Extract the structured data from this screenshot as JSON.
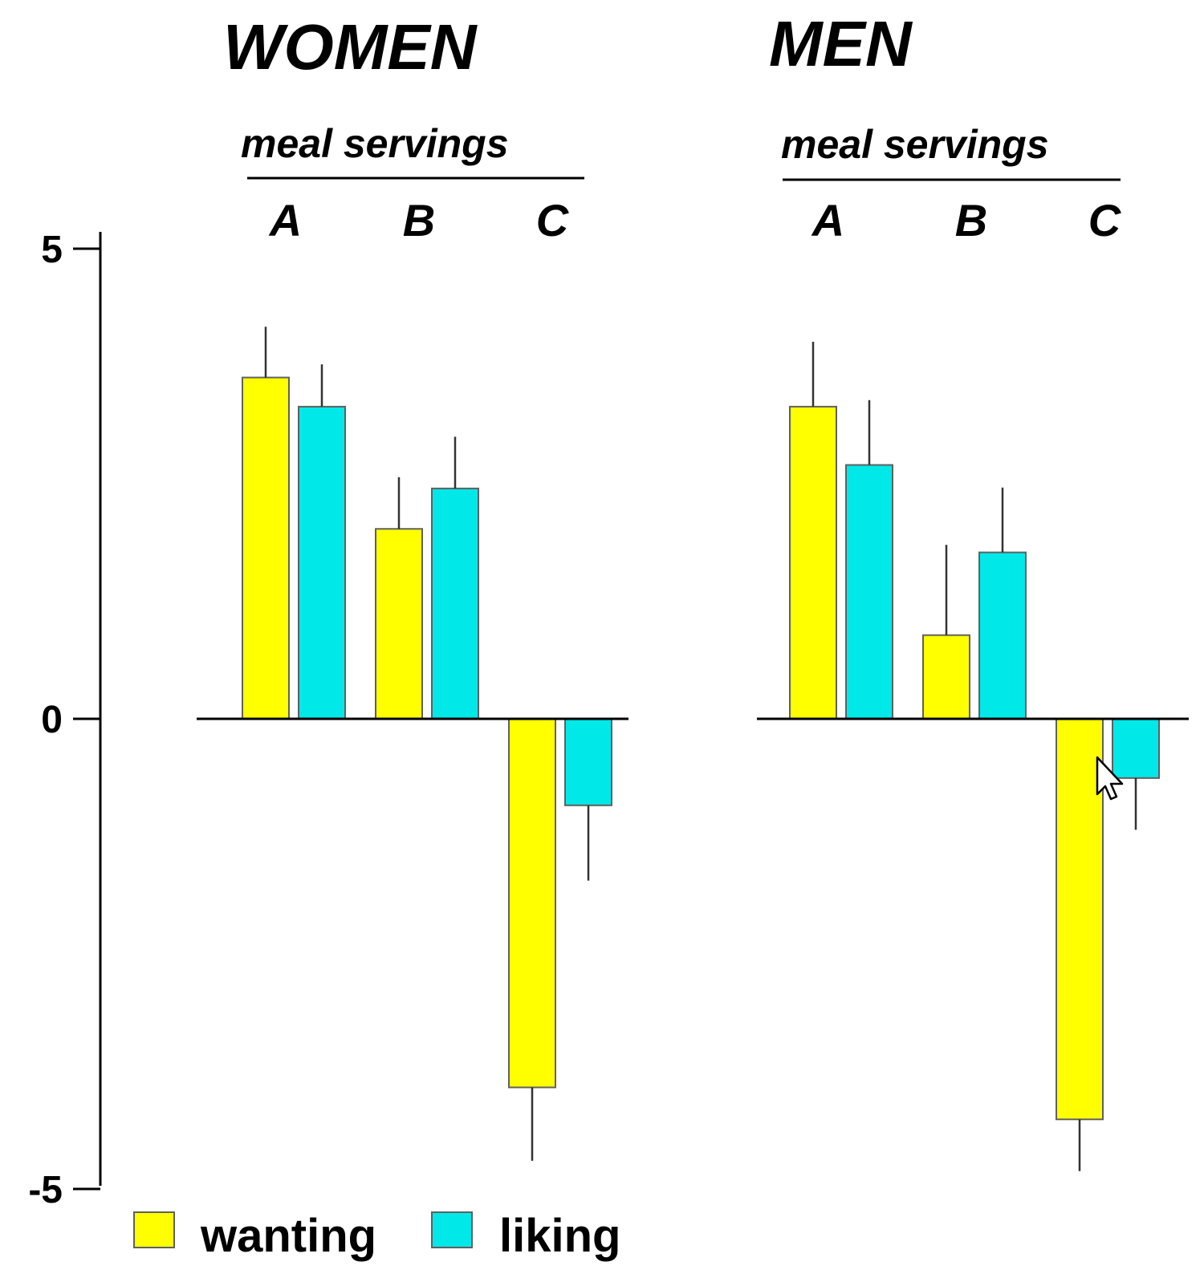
{
  "chart_data": {
    "type": "bar",
    "ylim": [
      -5,
      5
    ],
    "yticks": [
      5,
      0,
      -5
    ],
    "ytick_labels": [
      "5",
      "0",
      "-5"
    ],
    "colors": {
      "wanting": "#ffff00",
      "liking": "#00e8e8",
      "bar_edge": "#606060",
      "axis": "#000000"
    },
    "legend": [
      "wanting",
      "liking"
    ],
    "panels": [
      {
        "title": "WOMEN",
        "subtitle": "meal servings",
        "categories": [
          "A",
          "B",
          "C"
        ],
        "series": [
          {
            "name": "wanting",
            "values": [
              3.63,
              2.02,
              -3.92
            ],
            "errors": [
              0.54,
              0.55,
              0.78
            ]
          },
          {
            "name": "liking",
            "values": [
              3.32,
              2.45,
              -0.92
            ],
            "errors": [
              0.45,
              0.55,
              0.8
            ]
          }
        ]
      },
      {
        "title": "MEN",
        "subtitle": "meal servings",
        "categories": [
          "A",
          "B",
          "C"
        ],
        "series": [
          {
            "name": "wanting",
            "values": [
              3.32,
              0.89,
              -4.26
            ],
            "errors": [
              0.69,
              0.96,
              0.55
            ]
          },
          {
            "name": "liking",
            "values": [
              2.7,
              1.77,
              -0.63
            ],
            "errors": [
              0.69,
              0.69,
              0.55
            ]
          }
        ]
      }
    ]
  }
}
